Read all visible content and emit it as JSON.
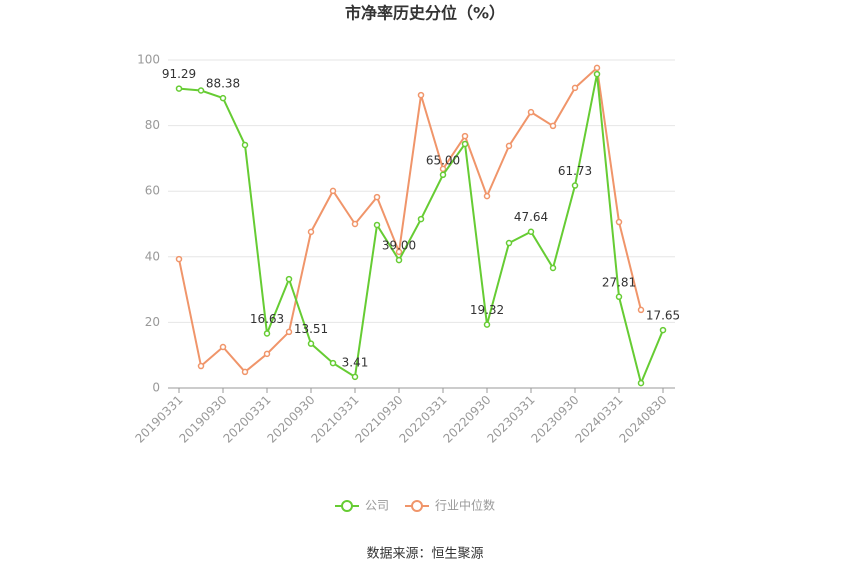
{
  "chart_data": {
    "type": "line",
    "title": "市净率历史分位（%）",
    "source": "数据来源：恒生聚源",
    "categories": [
      "20190331",
      null,
      "20190930",
      null,
      "20200331",
      null,
      "20200930",
      null,
      "20210331",
      null,
      "20210930",
      null,
      "20220331",
      null,
      "20220930",
      null,
      "20230331",
      null,
      "20230930",
      null,
      "20240331",
      null,
      "20240830"
    ],
    "series": [
      {
        "name": "公司",
        "color": "#66cc33",
        "values": [
          91.29,
          90.7,
          88.38,
          74.1,
          16.63,
          33.2,
          13.51,
          7.6,
          3.41,
          49.7,
          39.0,
          51.5,
          65.0,
          74.4,
          19.32,
          44.2,
          47.64,
          36.6,
          61.73,
          95.7,
          27.81,
          1.5,
          17.65
        ],
        "value_labels": [
          "91.29",
          null,
          "88.38",
          null,
          "16.63",
          null,
          "13.51",
          null,
          "3.41",
          null,
          "39.00",
          null,
          "65.00",
          null,
          "19.32",
          null,
          "47.64",
          null,
          "61.73",
          null,
          "27.81",
          null,
          "17.65"
        ]
      },
      {
        "name": "行业中位数",
        "color": "#f0956a",
        "values": [
          39.3,
          6.7,
          12.5,
          4.9,
          10.4,
          17.1,
          47.6,
          60.1,
          50.0,
          58.2,
          41.5,
          89.3,
          66.8,
          76.8,
          58.5,
          73.8,
          84.1,
          79.9,
          91.5,
          97.6,
          50.6,
          23.8,
          null
        ]
      }
    ],
    "ylim": [
      0,
      100
    ],
    "yticks": [
      0,
      20,
      40,
      60,
      80,
      100
    ],
    "grid": true
  }
}
